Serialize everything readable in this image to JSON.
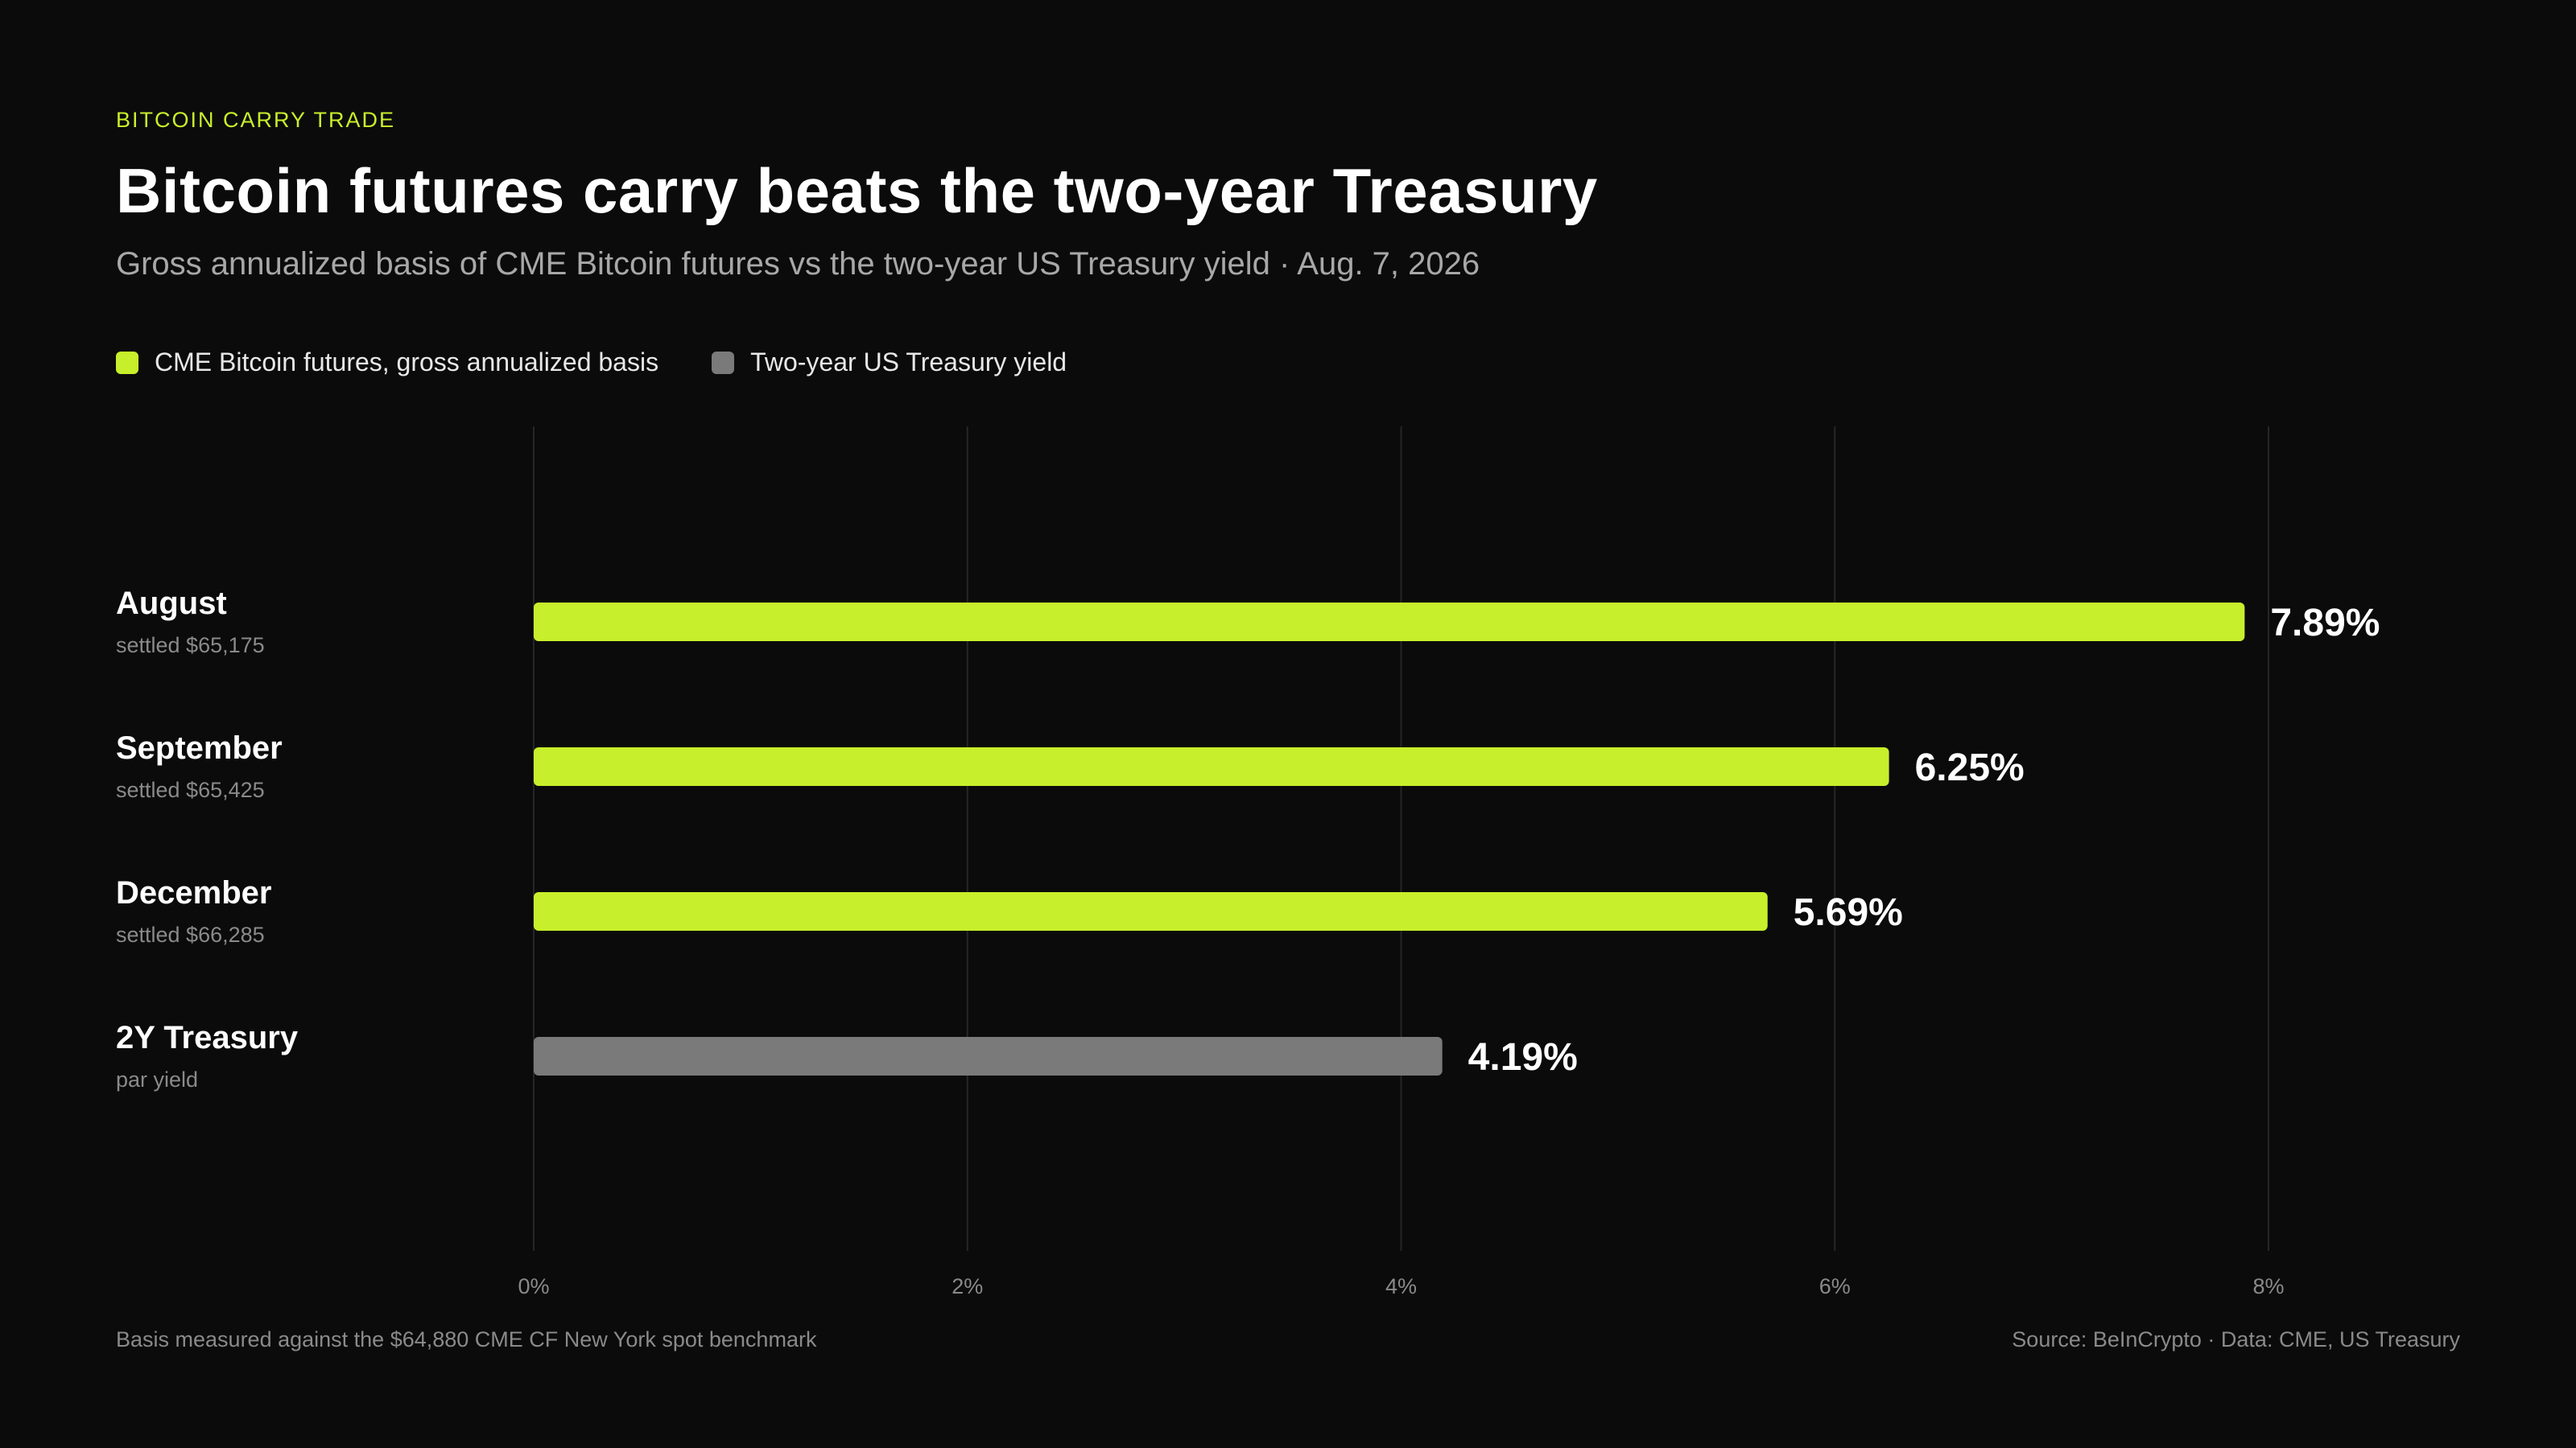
{
  "header": {
    "eyebrow": "BITCOIN CARRY TRADE",
    "title": "Bitcoin futures carry beats the two-year Treasury",
    "subtitle": "Gross annualized basis of CME Bitcoin futures vs the two-year US Treasury yield · Aug. 7, 2026"
  },
  "legend": [
    {
      "label": "CME Bitcoin futures, gross annualized basis",
      "color": "#c8ef2b"
    },
    {
      "label": "Two-year US Treasury yield",
      "color": "#7a7a7a"
    }
  ],
  "colors": {
    "futures": "#c8ef2b",
    "treasury": "#7a7a7a",
    "background": "#0b0b0b",
    "grid": "#262626"
  },
  "chart_data": {
    "type": "bar",
    "orientation": "horizontal",
    "categories": [
      "August",
      "September",
      "December",
      "2Y Treasury"
    ],
    "sublabels": [
      "settled $65,175",
      "settled $65,425",
      "settled $66,285",
      "par yield"
    ],
    "values": [
      7.89,
      6.25,
      5.69,
      4.19
    ],
    "value_labels": [
      "7.89%",
      "6.25%",
      "5.69%",
      "4.19%"
    ],
    "series_group": [
      "futures",
      "futures",
      "futures",
      "treasury"
    ],
    "xlim": [
      0,
      8
    ],
    "xticks": [
      0,
      2,
      4,
      6,
      8
    ],
    "xtick_labels": [
      "0%",
      "2%",
      "4%",
      "6%",
      "8%"
    ],
    "grid": true,
    "legend_position": "top-left"
  },
  "footer": {
    "note": "Basis measured against the $64,880 CME CF New York spot benchmark",
    "source": "Source: BeInCrypto · Data: CME, US Treasury"
  }
}
